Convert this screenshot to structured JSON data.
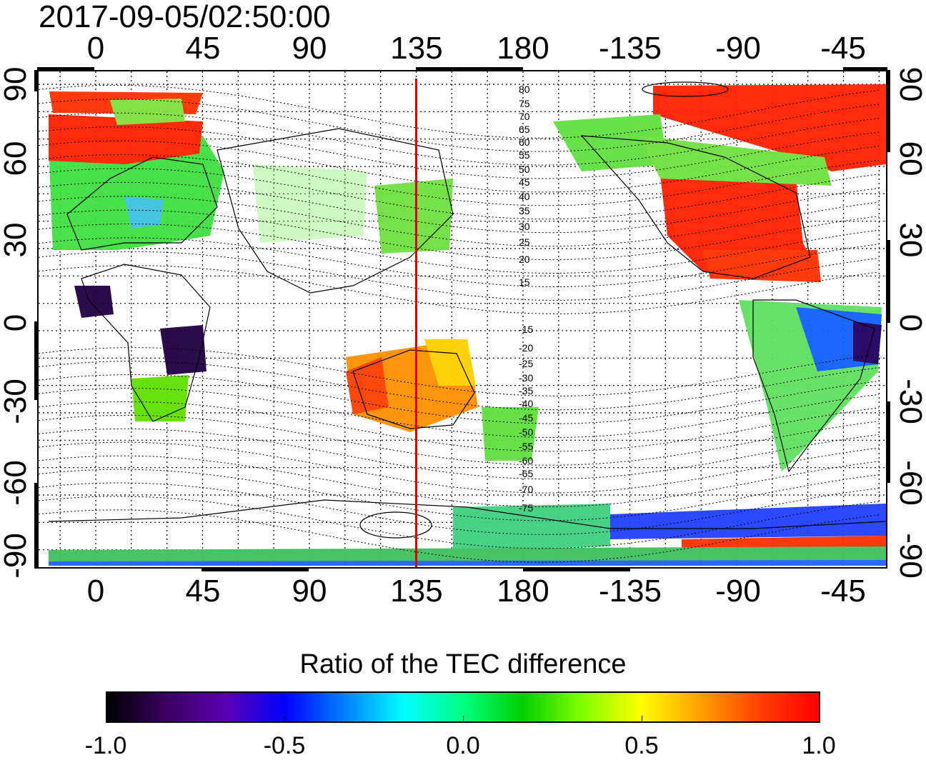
{
  "header": {
    "timestamp": "2017-09-05/02:50:00"
  },
  "axes": {
    "top_lon_ticks": [
      "0",
      "45",
      "90",
      "135",
      "180",
      "-135",
      "-90",
      "-45"
    ],
    "bottom_lon_ticks": [
      "0",
      "45",
      "90",
      "135",
      "180",
      "-135",
      "-90",
      "-45"
    ],
    "left_lat_ticks": [
      "90",
      "60",
      "30",
      "0",
      "-30",
      "-60",
      "-90"
    ],
    "right_lat_ticks": [
      "90",
      "60",
      "30",
      "0",
      "-30",
      "-60",
      "-90"
    ]
  },
  "contour_labels": [
    "80",
    "75",
    "70",
    "65",
    "60",
    "55",
    "50",
    "45",
    "40",
    "35",
    "30",
    "25",
    "20",
    "15",
    "-15",
    "-20",
    "-25",
    "-30",
    "-35",
    "-40",
    "-45",
    "-50",
    "-55",
    "-60",
    "-65",
    "-70",
    "-75"
  ],
  "colorbar": {
    "title": "Ratio of the TEC difference",
    "ticks": [
      "-1.0",
      "-0.5",
      "0.0",
      "0.5",
      "1.0"
    ],
    "colors": [
      "#000000",
      "#3a0060",
      "#5a00b0",
      "#0000ff",
      "#0080ff",
      "#00ffff",
      "#00ff80",
      "#00d000",
      "#80ff00",
      "#ffff00",
      "#ffa000",
      "#ff4000",
      "#ff0000"
    ]
  },
  "marker": {
    "longitude": 135,
    "color": "#e00000"
  }
}
